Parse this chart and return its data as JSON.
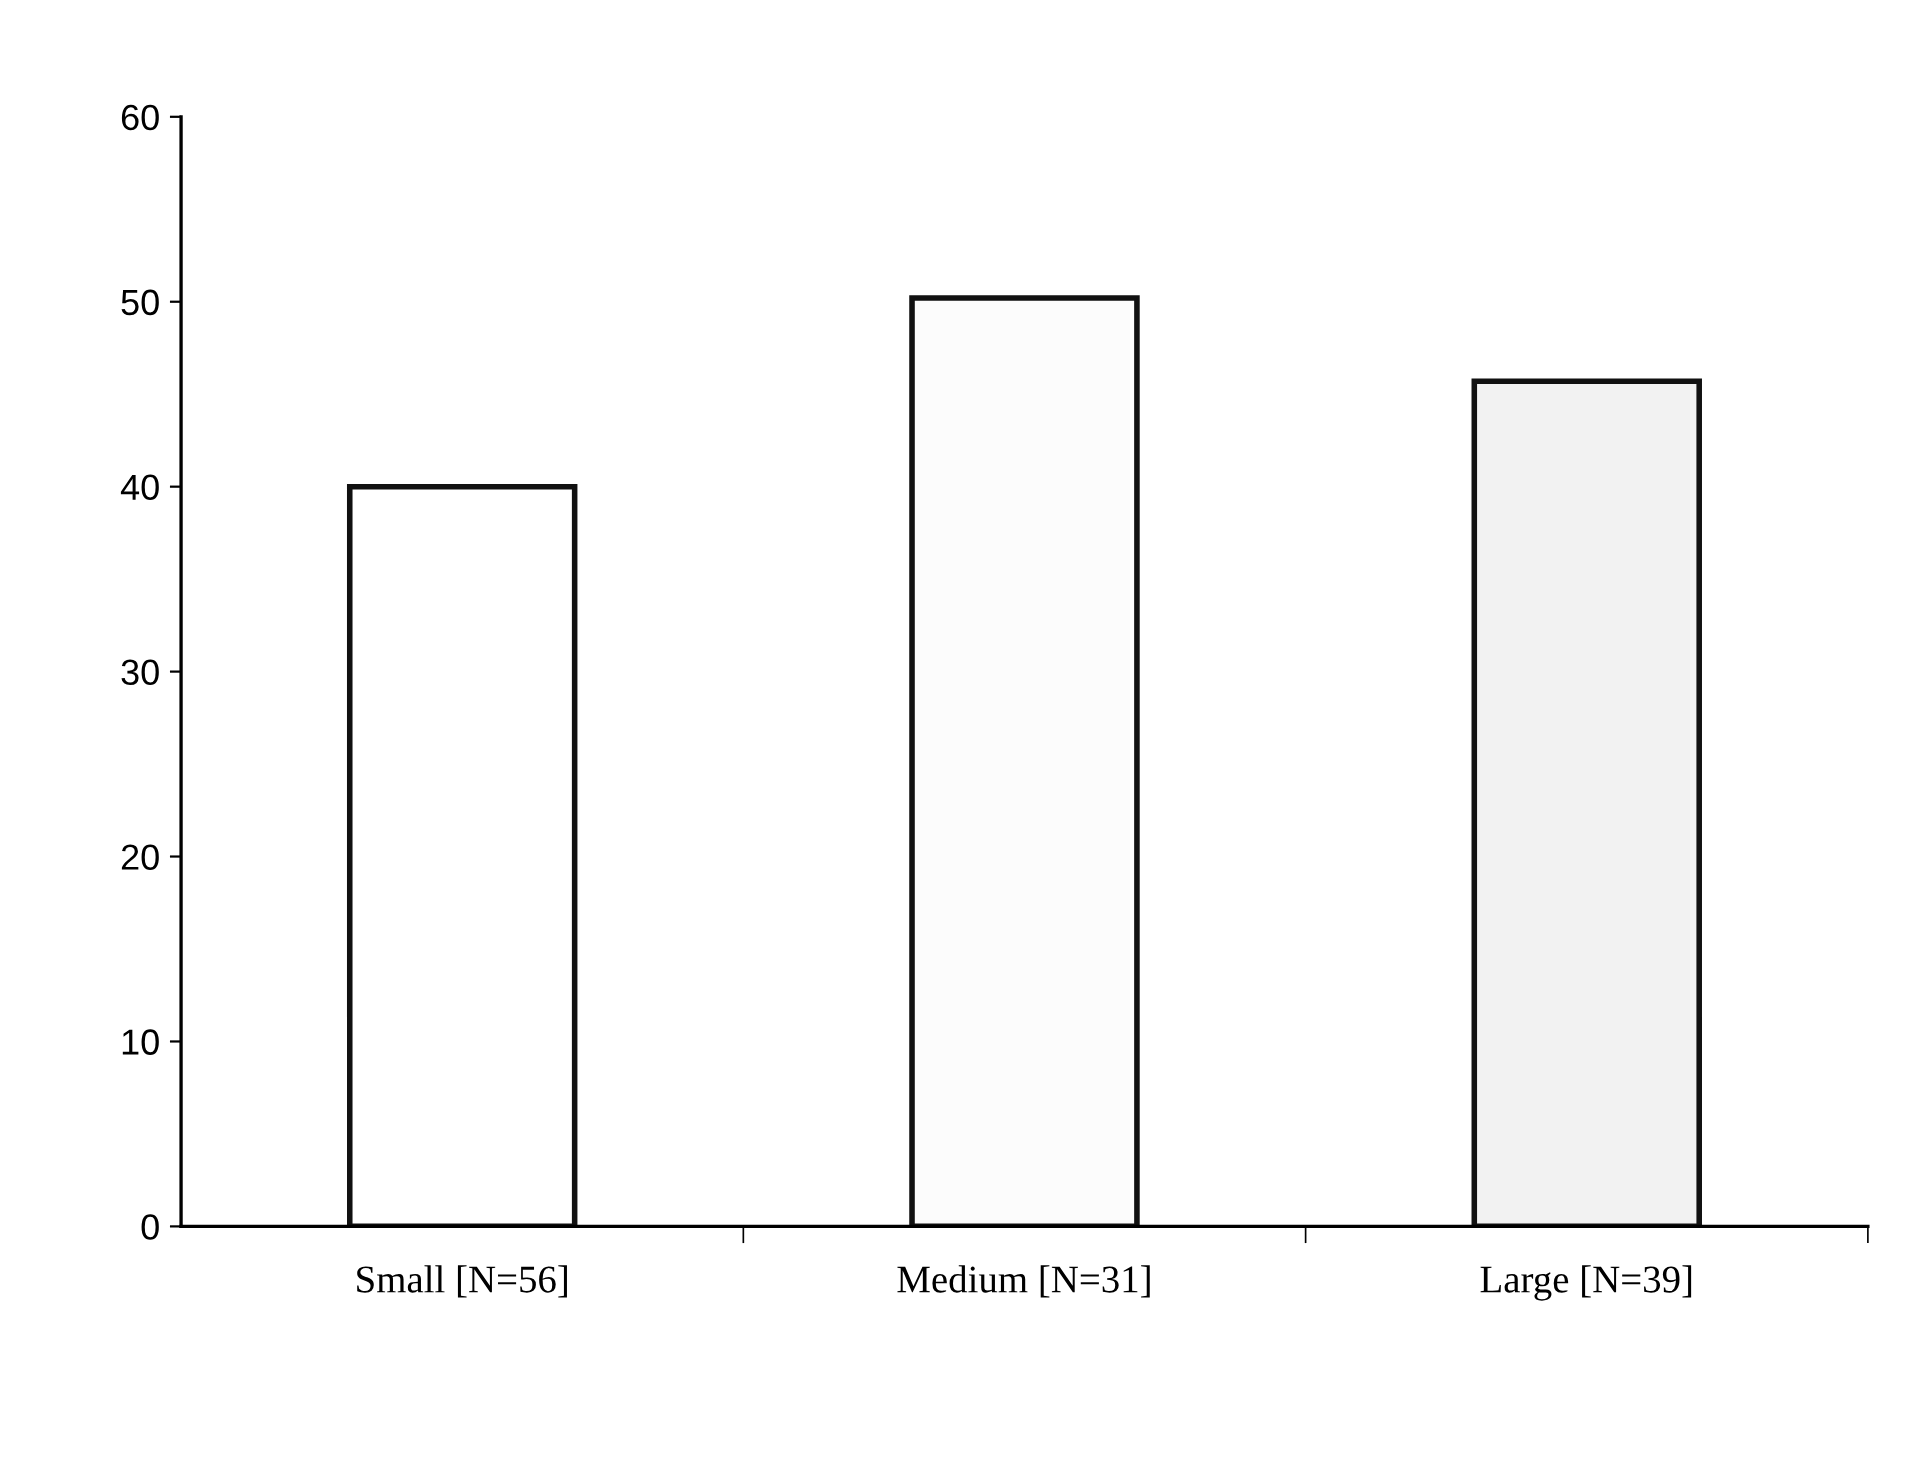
{
  "chart_data": {
    "type": "bar",
    "categories": [
      "Small [N=56]",
      "Medium [N=31]",
      "Large [N=39]"
    ],
    "values": [
      40,
      50.2,
      45.7
    ],
    "colors": [
      "#ffffff",
      "#fcfcfc",
      "#f2f2f2"
    ],
    "ylim": [
      0,
      60
    ],
    "yticks": [
      0,
      10,
      20,
      30,
      40,
      50,
      60
    ],
    "grid": false,
    "legend": false
  }
}
